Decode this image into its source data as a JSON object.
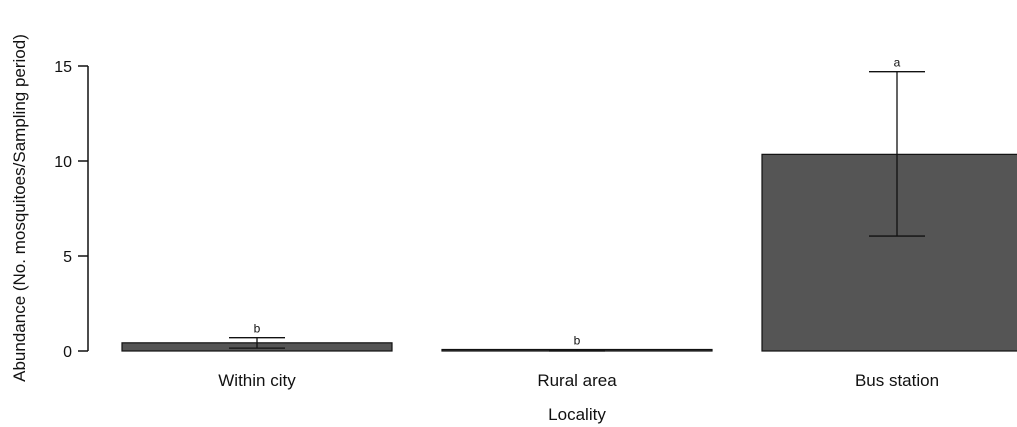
{
  "chart_data": {
    "type": "bar",
    "title": "",
    "xlabel": "Locality",
    "ylabel": "Abundance (No. mosquitoes/Sampling period)",
    "categories": [
      "Within city",
      "Rural area",
      "Bus station"
    ],
    "values": [
      0.43,
      0.02,
      10.35
    ],
    "error_lower": [
      0.15,
      0.0,
      6.05
    ],
    "error_upper": [
      0.7,
      0.07,
      14.7
    ],
    "significance": [
      "b",
      "b",
      "a"
    ],
    "ylim": [
      0,
      15
    ],
    "yticks": [
      0,
      5,
      10,
      15
    ],
    "ytick_labels": [
      "0",
      "5",
      "10",
      "15"
    ],
    "bar_color": "#555555",
    "grid": false,
    "legend": "none"
  }
}
